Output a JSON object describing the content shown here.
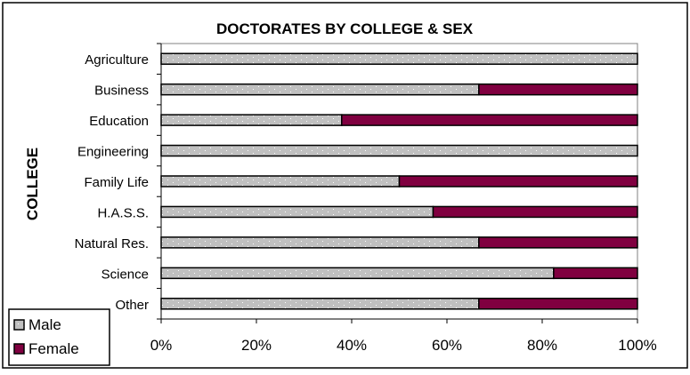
{
  "colors": {
    "male_fill": "#c0c0c0",
    "male_dots": "#ffffff",
    "female_fill": "#800040",
    "outline": "#000000"
  },
  "chart_data": {
    "type": "bar",
    "orientation": "horizontal",
    "stacking": "100%",
    "title": "DOCTORATES BY COLLEGE & SEX",
    "xlabel": "",
    "ylabel": "COLLEGE",
    "xlim": [
      0,
      100
    ],
    "x_ticks": [
      "0%",
      "20%",
      "40%",
      "60%",
      "80%",
      "100%"
    ],
    "x_tick_values": [
      0,
      20,
      40,
      60,
      80,
      100
    ],
    "categories": [
      "Agriculture",
      "Business",
      "Education",
      "Engineering",
      "Family Life",
      "H.A.S.S.",
      "Natural Res.",
      "Science",
      "Other"
    ],
    "series": [
      {
        "name": "Male",
        "values": [
          100,
          66.7,
          37.9,
          100,
          50,
          57.1,
          66.7,
          82.4,
          66.7
        ]
      },
      {
        "name": "Female",
        "values": [
          0,
          33.3,
          62.1,
          0,
          50,
          42.9,
          33.3,
          17.6,
          33.3
        ]
      }
    ],
    "legend": {
      "position": "bottom-left",
      "entries": [
        "Male",
        "Female"
      ]
    },
    "grid": false
  }
}
